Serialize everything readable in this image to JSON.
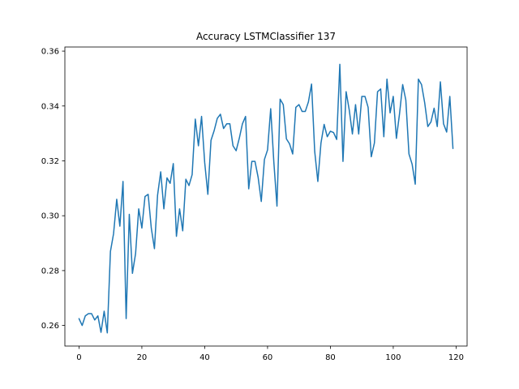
{
  "chart_data": {
    "type": "line",
    "title": "Accuracy LSTMClassifier 137",
    "xlabel": "",
    "ylabel": "",
    "xlim": [
      -4.5,
      123.5
    ],
    "ylim": [
      0.2525,
      0.3615
    ],
    "grid": false,
    "x_ticks": [
      0,
      20,
      40,
      60,
      80,
      100,
      120
    ],
    "y_ticks": [
      0.26,
      0.28,
      0.3,
      0.32,
      0.34,
      0.36
    ],
    "x_tick_labels": [
      "0",
      "20",
      "40",
      "60",
      "80",
      "100",
      "120"
    ],
    "y_tick_labels": [
      "0.26",
      "0.28",
      "0.30",
      "0.32",
      "0.34",
      "0.36"
    ],
    "series": [
      {
        "color": "#1f77b4",
        "x": [
          0,
          1,
          2,
          3,
          4,
          5,
          6,
          7,
          8,
          9,
          10,
          11,
          12,
          13,
          14,
          15,
          16,
          17,
          18,
          19,
          20,
          21,
          22,
          23,
          24,
          25,
          26,
          27,
          28,
          29,
          30,
          31,
          32,
          33,
          34,
          35,
          36,
          37,
          38,
          39,
          40,
          41,
          42,
          43,
          44,
          45,
          46,
          47,
          48,
          49,
          50,
          51,
          52,
          53,
          54,
          55,
          56,
          57,
          58,
          59,
          60,
          61,
          62,
          63,
          64,
          65,
          66,
          67,
          68,
          69,
          70,
          71,
          72,
          73,
          74,
          75,
          76,
          77,
          78,
          79,
          80,
          81,
          82,
          83,
          84,
          85,
          86,
          87,
          88,
          89,
          90,
          91,
          92,
          93,
          94,
          95,
          96,
          97,
          98,
          99,
          100,
          101,
          102,
          103,
          104,
          105,
          106,
          107,
          108,
          109,
          110,
          111,
          112,
          113,
          114,
          115,
          116,
          117,
          118,
          119
        ],
        "y": [
          0.2625,
          0.26,
          0.2635,
          0.2643,
          0.2643,
          0.262,
          0.2635,
          0.2575,
          0.2652,
          0.2573,
          0.287,
          0.2935,
          0.306,
          0.2962,
          0.3125,
          0.2625,
          0.3005,
          0.279,
          0.2862,
          0.3025,
          0.2955,
          0.307,
          0.3078,
          0.2955,
          0.288,
          0.3075,
          0.316,
          0.3025,
          0.3138,
          0.3118,
          0.319,
          0.2925,
          0.3025,
          0.2945,
          0.3133,
          0.311,
          0.315,
          0.3352,
          0.3255,
          0.3362,
          0.3193,
          0.3078,
          0.3275,
          0.331,
          0.3355,
          0.337,
          0.3318,
          0.3335,
          0.3335,
          0.3255,
          0.3237,
          0.3282,
          0.3335,
          0.3362,
          0.3098,
          0.3198,
          0.3198,
          0.314,
          0.3052,
          0.3205,
          0.324,
          0.339,
          0.3195,
          0.3035,
          0.3425,
          0.3405,
          0.328,
          0.3262,
          0.3225,
          0.3395,
          0.3405,
          0.338,
          0.338,
          0.3415,
          0.348,
          0.3235,
          0.3125,
          0.3265,
          0.3333,
          0.3288,
          0.3308,
          0.3303,
          0.3278,
          0.3552,
          0.3198,
          0.3452,
          0.3385,
          0.3298,
          0.3405,
          0.3298,
          0.3435,
          0.3435,
          0.3395,
          0.3215,
          0.3265,
          0.3452,
          0.3462,
          0.3288,
          0.3498,
          0.3375,
          0.3435,
          0.3282,
          0.3372,
          0.3478,
          0.3422,
          0.3225,
          0.3188,
          0.3115,
          0.3498,
          0.3478,
          0.3412,
          0.3325,
          0.3342,
          0.3392,
          0.3325,
          0.3488,
          0.3335,
          0.3305,
          0.3435,
          0.3245
        ]
      }
    ]
  }
}
